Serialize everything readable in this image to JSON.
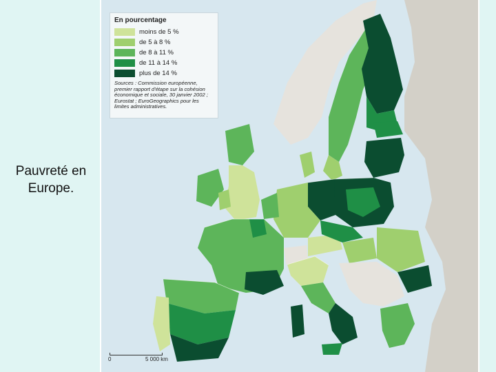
{
  "slide": {
    "caption": "Pauvreté en Europe."
  },
  "colors": {
    "sea": "#d7e7ef",
    "outside_eu": "#d3d0c8",
    "class_1": "#cfe39a",
    "class_2": "#9fcf6e",
    "class_3": "#5db55a",
    "class_4": "#1f8f46",
    "class_5": "#0b4d30",
    "non_eu_land": "#e6e3dd"
  },
  "legend": {
    "title": "En pourcentage",
    "items": [
      {
        "label": "moins de 5 %",
        "color": "#cfe39a"
      },
      {
        "label": "de 5 à 8 %",
        "color": "#9fcf6e"
      },
      {
        "label": "de 8 à 11 %",
        "color": "#5db55a"
      },
      {
        "label": "de 11 à 14 %",
        "color": "#1f8f46"
      },
      {
        "label": "plus de 14 %",
        "color": "#0b4d30"
      }
    ],
    "source": "Sources : Commission européenne, premier rapport d'étape sur la cohésion économique et sociale, 30 janvier 2002 ; Eurostat ; EuroGeographics pour les limites administratives."
  },
  "scale": {
    "start": "0",
    "end": "5 000 km"
  }
}
